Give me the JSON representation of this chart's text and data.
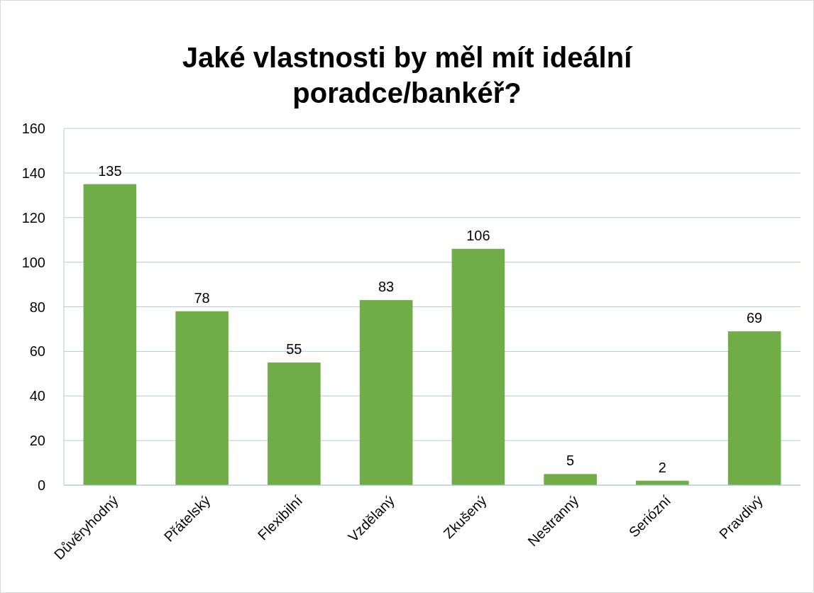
{
  "chart_data": {
    "type": "bar",
    "title": "Jaké vlastnosti by měl mít ideální poradce/bankéř?",
    "categories": [
      "Důvěryhodný",
      "Přátelský",
      "Flexibilní",
      "Vzdělaný",
      "Zkušený",
      "Nestranný",
      "Seriózní",
      "Pravdivý"
    ],
    "values": [
      135,
      78,
      55,
      83,
      106,
      5,
      2,
      69
    ],
    "color": "#70ad47",
    "ylim": [
      0,
      160
    ],
    "yticks": [
      0,
      20,
      40,
      60,
      80,
      100,
      120,
      140,
      160
    ],
    "grid": "y",
    "data_labels": true
  }
}
